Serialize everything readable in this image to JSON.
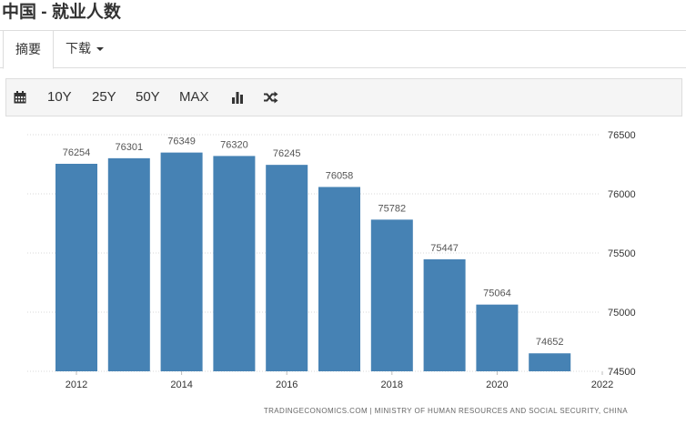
{
  "page": {
    "title": "中国 - 就业人数"
  },
  "tabs": {
    "summary": "摘要",
    "download": "下载"
  },
  "toolbar": {
    "calendar_icon": "calendar-icon",
    "ranges": [
      "10Y",
      "25Y",
      "50Y",
      "MAX"
    ],
    "bar_chart_icon": "bar-chart-icon",
    "shuffle_icon": "shuffle-icon"
  },
  "colors": {
    "bar": "#4682b4",
    "grid": "#d9d9d9"
  },
  "chart_data": {
    "type": "bar",
    "x": [
      2012,
      2013,
      2014,
      2015,
      2016,
      2017,
      2018,
      2019,
      2020,
      2021
    ],
    "values": [
      76254,
      76301,
      76349,
      76320,
      76245,
      76058,
      75782,
      75447,
      75064,
      74652
    ],
    "x_ticks": [
      "2012",
      "2014",
      "2016",
      "2018",
      "2020",
      "2022"
    ],
    "y_ticks": [
      "74500",
      "75000",
      "75500",
      "76000",
      "76500"
    ],
    "ylim": [
      74500,
      76500
    ],
    "y_axis_position": "right",
    "grid": true,
    "legend": "none",
    "source": "TRADINGECONOMICS.COM  |  MINISTRY OF HUMAN RESOURCES AND SOCIAL SECURITY, CHINA"
  }
}
